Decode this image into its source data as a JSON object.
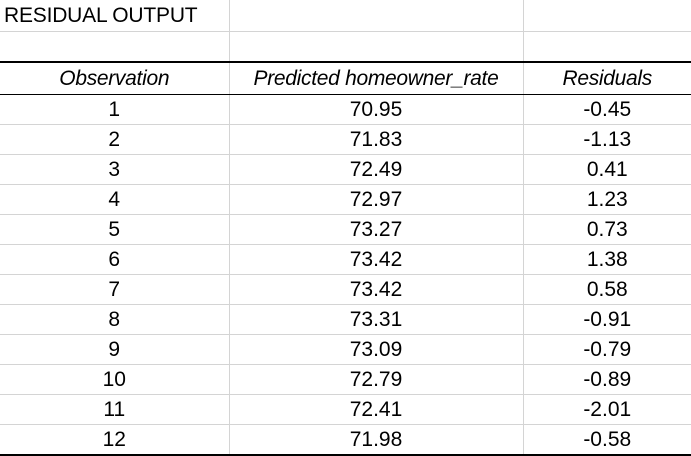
{
  "title": "RESIDUAL OUTPUT",
  "columns": [
    "Observation",
    "Predicted homeowner_rate",
    "Residuals"
  ],
  "rows": [
    {
      "observation": "1",
      "predicted": "70.95",
      "residual": "-0.45"
    },
    {
      "observation": "2",
      "predicted": "71.83",
      "residual": "-1.13"
    },
    {
      "observation": "3",
      "predicted": "72.49",
      "residual": "0.41"
    },
    {
      "observation": "4",
      "predicted": "72.97",
      "residual": "1.23"
    },
    {
      "observation": "5",
      "predicted": "73.27",
      "residual": "0.73"
    },
    {
      "observation": "6",
      "predicted": "73.42",
      "residual": "1.38"
    },
    {
      "observation": "7",
      "predicted": "73.42",
      "residual": "0.58"
    },
    {
      "observation": "8",
      "predicted": "73.31",
      "residual": "-0.91"
    },
    {
      "observation": "9",
      "predicted": "73.09",
      "residual": "-0.79"
    },
    {
      "observation": "10",
      "predicted": "72.79",
      "residual": "-0.89"
    },
    {
      "observation": "11",
      "predicted": "72.41",
      "residual": "-2.01"
    },
    {
      "observation": "12",
      "predicted": "71.98",
      "residual": "-0.58"
    }
  ]
}
